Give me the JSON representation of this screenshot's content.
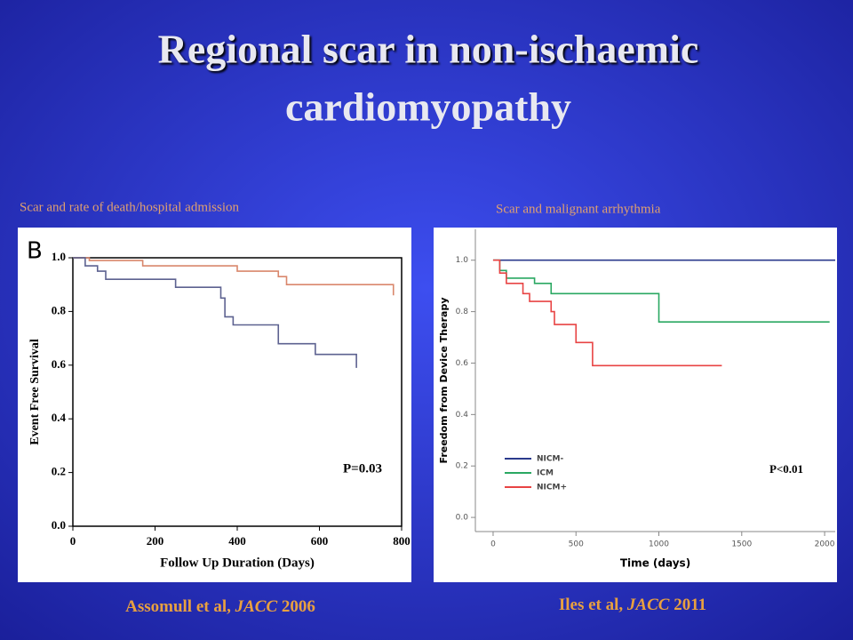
{
  "slide": {
    "title": [
      "Regional scar in non-ischaemic",
      "cardiomyopathy"
    ],
    "captions": [
      {
        "subtitle": "Scar and rate of death/hospital admission",
        "authors": "Assomull et al,",
        "journal": "JACC",
        "year": "2006"
      },
      {
        "subtitle": "Scar and malignant arrhythmia",
        "authors": "Iles et al,",
        "journal": "JACC",
        "year": "2011"
      }
    ]
  },
  "chart_data": [
    {
      "type": "step",
      "panel_label": "B",
      "xlabel": "Follow Up Duration (Days)",
      "ylabel": "Event Free Survival",
      "annotation": "P=0.03",
      "xlim": [
        0,
        800
      ],
      "xticks": [
        0,
        200,
        400,
        600,
        800
      ],
      "ylim": [
        0,
        1.0
      ],
      "yticks": [
        {
          "value": 0,
          "label": "0.0"
        },
        {
          "value": 0.2,
          "label": "0.2"
        },
        {
          "value": 0.4,
          "label": "0.4"
        },
        {
          "value": 0.6,
          "label": "0.6"
        },
        {
          "value": 0.8,
          "label": "0.8"
        },
        {
          "value": 1.0,
          "label": "1.0"
        }
      ],
      "series": [
        {
          "color": "#d9876c",
          "x": [
            0,
            40,
            170,
            400,
            500,
            520,
            780
          ],
          "values": [
            1.0,
            0.99,
            0.97,
            0.95,
            0.93,
            0.9,
            0.86
          ]
        },
        {
          "color": "#5d6290",
          "x": [
            0,
            30,
            60,
            80,
            250,
            360,
            370,
            390,
            500,
            590,
            690
          ],
          "values": [
            1.0,
            0.97,
            0.95,
            0.92,
            0.89,
            0.85,
            0.78,
            0.75,
            0.68,
            0.64,
            0.59
          ]
        }
      ]
    },
    {
      "type": "step",
      "xlabel": "Time (days)",
      "ylabel": "Freedom from Device Therapy",
      "annotation": "P<0.01",
      "xlim": [
        -107,
        2064
      ],
      "xticks": [
        0,
        500,
        1000,
        1500,
        2000
      ],
      "ylim": [
        -0.055,
        1.12
      ],
      "yticks": [
        {
          "value": 0,
          "label": "0.0"
        },
        {
          "value": 0.2,
          "label": "0.2"
        },
        {
          "value": 0.4,
          "label": "0.4"
        },
        {
          "value": 0.6,
          "label": "0.6"
        },
        {
          "value": 0.8,
          "label": "0.8"
        },
        {
          "value": 1.0,
          "label": "1.0"
        }
      ],
      "legend": "lower left",
      "series": [
        {
          "name": "NICM-",
          "color": "#2b3a8c",
          "x": [
            0,
            2064
          ],
          "values": [
            1.0,
            1.0
          ]
        },
        {
          "name": "ICM",
          "color": "#2aa862",
          "x": [
            0,
            40,
            80,
            250,
            350,
            1000,
            2030
          ],
          "values": [
            1.0,
            0.96,
            0.93,
            0.91,
            0.87,
            0.76,
            0.76
          ]
        },
        {
          "name": "NICM+",
          "color": "#e84444",
          "x": [
            0,
            40,
            80,
            180,
            220,
            350,
            370,
            500,
            600,
            1380
          ],
          "values": [
            1.0,
            0.95,
            0.91,
            0.87,
            0.84,
            0.8,
            0.75,
            0.68,
            0.59,
            0.59
          ]
        }
      ]
    }
  ]
}
